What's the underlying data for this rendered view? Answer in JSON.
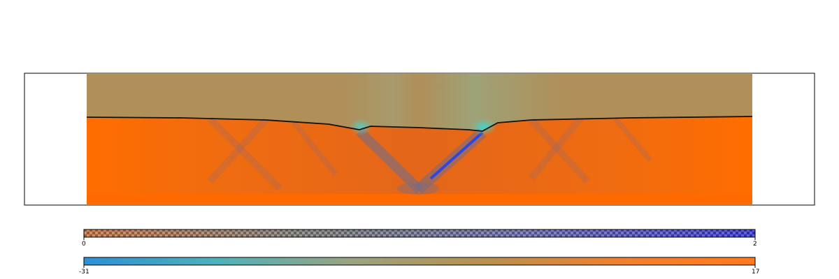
{
  "colorbars": [
    {
      "name": "interface-colorbar",
      "min_label": "0",
      "max_label": "2",
      "gradient": [
        "#c87545",
        "#7d7f7b",
        "#6a6cae",
        "#3a3ad8"
      ],
      "pattern": "checkered"
    },
    {
      "name": "field-colorbar",
      "min_label": "-31",
      "max_label": "17",
      "gradient": [
        "#2f8fd5",
        "#4fb1b9",
        "#9aa380",
        "#b8904f",
        "#f08030",
        "#ff7a1e"
      ],
      "pattern": "solid"
    }
  ],
  "colors": {
    "upper_fluid": "#b08f58",
    "lower_fluid": "#f66a0b",
    "lower_fluid_dark": "#e05e0e",
    "interface_line": "#111111",
    "blue_band": "#2244ee",
    "frame_border": "#000000"
  }
}
